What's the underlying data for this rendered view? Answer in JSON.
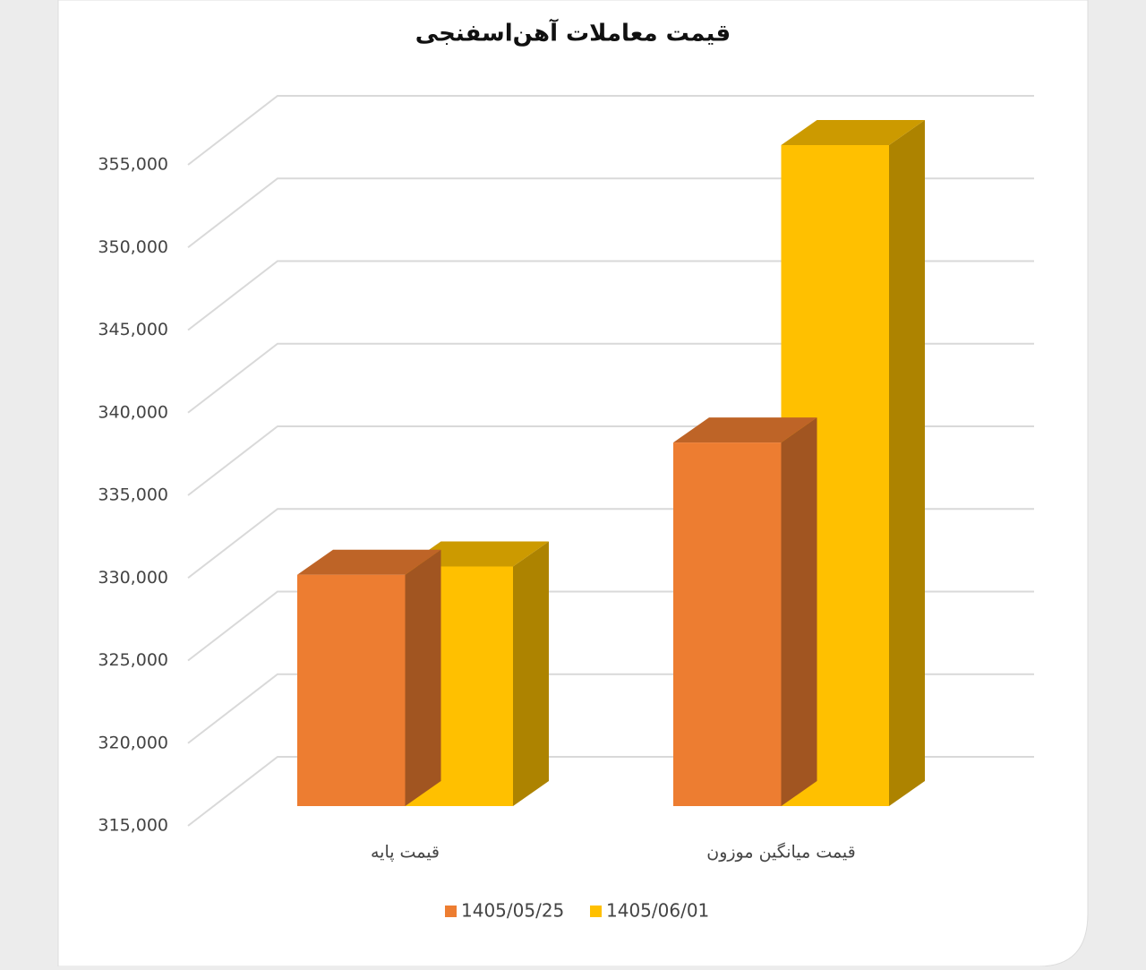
{
  "chart_data": {
    "type": "bar3d",
    "title": "قیمت معاملات آهن‌اسفنجی",
    "categories": [
      "قیمت پایه",
      "قیمت میانگین موزون"
    ],
    "series": [
      {
        "name": "1405/05/25",
        "color": "#ED7D31",
        "values": [
          329000,
          337000
        ]
      },
      {
        "name": "1405/06/01",
        "color": "#FFC000",
        "values": [
          329500,
          355000
        ]
      }
    ],
    "ylim": [
      315000,
      355000
    ],
    "yticks": [
      {
        "value": 315000,
        "label": "315,000"
      },
      {
        "value": 320000,
        "label": "320,000"
      },
      {
        "value": 325000,
        "label": "325,000"
      },
      {
        "value": 330000,
        "label": "330,000"
      },
      {
        "value": 335000,
        "label": "335,000"
      },
      {
        "value": 340000,
        "label": "340,000"
      },
      {
        "value": 345000,
        "label": "345,000"
      },
      {
        "value": 350000,
        "label": "350,000"
      },
      {
        "value": 355000,
        "label": "355,000"
      }
    ],
    "grid": true,
    "legend": "bottom"
  }
}
